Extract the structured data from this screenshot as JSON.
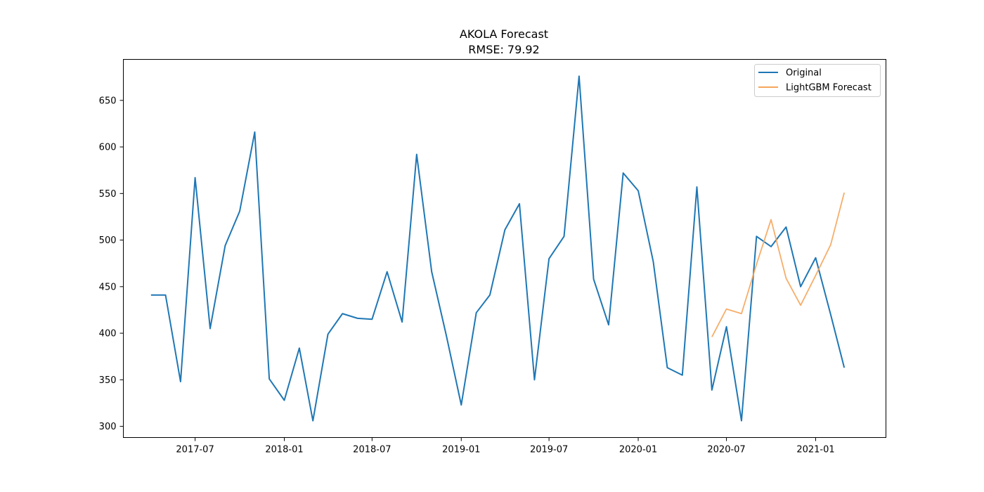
{
  "chart_data": {
    "type": "line",
    "title": "AKOLA Forecast",
    "subtitle": "RMSE: 79.92",
    "xlabel": "",
    "ylabel": "",
    "ylim": [
      288,
      694
    ],
    "xlim": [
      "2017-02-03",
      "2021-05-26"
    ],
    "y_ticks": [
      300,
      350,
      400,
      450,
      500,
      550,
      600,
      650
    ],
    "x_ticks": [
      "2017-07",
      "2018-01",
      "2018-07",
      "2019-01",
      "2019-07",
      "2020-01",
      "2020-07",
      "2021-01"
    ],
    "grid": false,
    "legend_position": "top-right",
    "series": [
      {
        "name": "Original",
        "color": "#1f77b4",
        "points": [
          [
            "2017-04-01",
            441
          ],
          [
            "2017-05-01",
            441
          ],
          [
            "2017-06-01",
            348
          ],
          [
            "2017-07-01",
            567
          ],
          [
            "2017-08-01",
            405
          ],
          [
            "2017-09-01",
            494
          ],
          [
            "2017-10-01",
            531
          ],
          [
            "2017-11-01",
            616
          ],
          [
            "2017-12-01",
            351
          ],
          [
            "2018-01-01",
            328
          ],
          [
            "2018-02-01",
            384
          ],
          [
            "2018-03-01",
            306
          ],
          [
            "2018-04-01",
            399
          ],
          [
            "2018-05-01",
            421
          ],
          [
            "2018-06-01",
            416
          ],
          [
            "2018-07-01",
            415
          ],
          [
            "2018-08-01",
            466
          ],
          [
            "2018-09-01",
            412
          ],
          [
            "2018-10-01",
            592
          ],
          [
            "2018-11-01",
            466
          ],
          [
            "2018-12-01",
            398
          ],
          [
            "2019-01-01",
            323
          ],
          [
            "2019-02-01",
            422
          ],
          [
            "2019-03-01",
            441
          ],
          [
            "2019-04-01",
            511
          ],
          [
            "2019-05-01",
            539
          ],
          [
            "2019-06-01",
            350
          ],
          [
            "2019-07-01",
            480
          ],
          [
            "2019-08-01",
            504
          ],
          [
            "2019-09-01",
            676
          ],
          [
            "2019-10-01",
            458
          ],
          [
            "2019-11-01",
            409
          ],
          [
            "2019-12-01",
            572
          ],
          [
            "2020-01-01",
            553
          ],
          [
            "2020-02-01",
            477
          ],
          [
            "2020-03-01",
            363
          ],
          [
            "2020-04-01",
            355
          ],
          [
            "2020-05-01",
            557
          ],
          [
            "2020-06-01",
            339
          ],
          [
            "2020-07-01",
            407
          ],
          [
            "2020-08-01",
            306
          ],
          [
            "2020-09-01",
            504
          ],
          [
            "2020-10-01",
            493
          ],
          [
            "2020-11-01",
            514
          ],
          [
            "2020-12-01",
            450
          ],
          [
            "2021-01-01",
            481
          ],
          [
            "2021-02-01",
            420
          ],
          [
            "2021-03-01",
            363
          ]
        ]
      },
      {
        "name": "LightGBM Forecast",
        "color": "#f5a55a",
        "points": [
          [
            "2020-06-01",
            396
          ],
          [
            "2020-07-01",
            426
          ],
          [
            "2020-08-01",
            421
          ],
          [
            "2020-09-01",
            474
          ],
          [
            "2020-10-01",
            522
          ],
          [
            "2020-11-01",
            459
          ],
          [
            "2020-12-01",
            430
          ],
          [
            "2021-01-01",
            462
          ],
          [
            "2021-02-01",
            495
          ],
          [
            "2021-03-01",
            551
          ]
        ]
      }
    ]
  }
}
